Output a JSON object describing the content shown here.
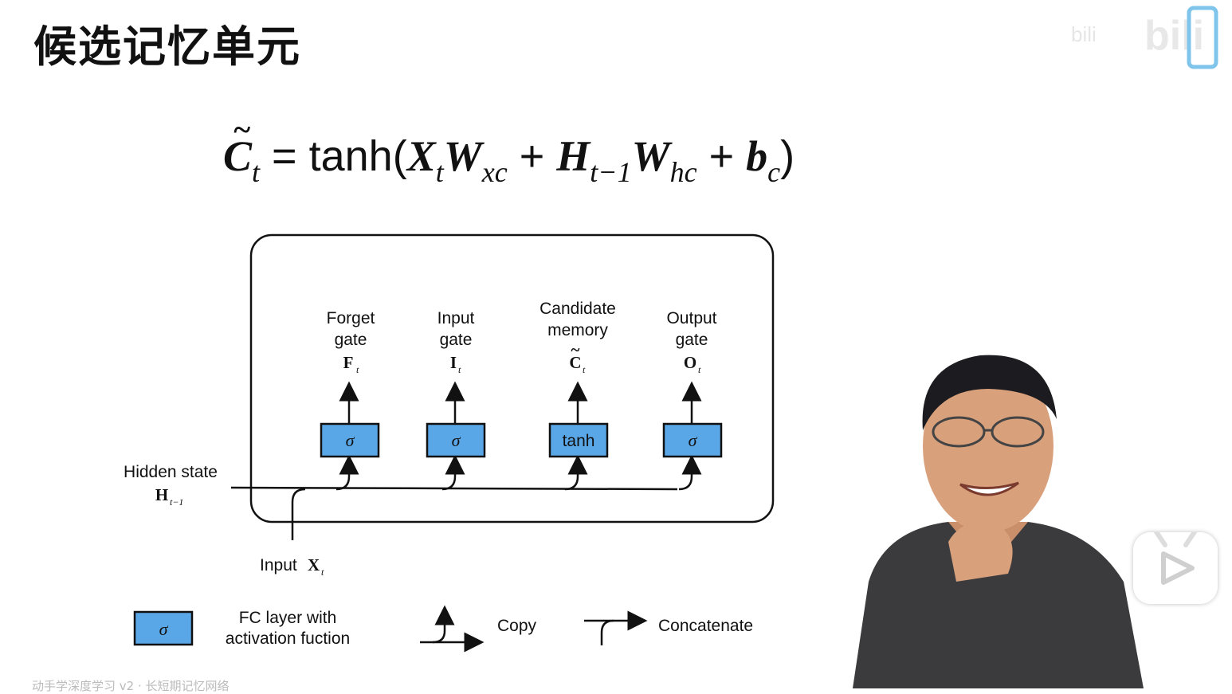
{
  "title": "候选记忆单元",
  "watermark": "bili",
  "formula": {
    "C": "C",
    "t": "t",
    "equals": " = ",
    "tanh": "tanh",
    "open": "(",
    "X": "X",
    "W": "W",
    "xc": "xc",
    "plus": " + ",
    "H": "H",
    "t_minus_1": "t−1",
    "hc": "hc",
    "b": "b",
    "c": "c",
    "close": ")"
  },
  "gates": [
    {
      "name_line1": "Forget",
      "name_line2": "gate",
      "symbol": "F",
      "sub": "t",
      "box": "σ"
    },
    {
      "name_line1": "Input",
      "name_line2": "gate",
      "symbol": "I",
      "sub": "t",
      "box": "σ"
    },
    {
      "name_line1": "Candidate",
      "name_line2": "memory",
      "symbol": "C",
      "sub": "t",
      "box": "tanh"
    },
    {
      "name_line1": "Output",
      "name_line2": "gate",
      "symbol": "O",
      "sub": "t",
      "box": "σ"
    }
  ],
  "hidden_state": {
    "label": "Hidden state",
    "symbol": "H",
    "sub": "t−1"
  },
  "input": {
    "label": "Input",
    "symbol": "X",
    "sub": "t"
  },
  "legend": {
    "box": "σ",
    "fc_line1": "FC layer with",
    "fc_line2": "activation fuction",
    "copy": "Copy",
    "concatenate": "Concatenate"
  },
  "caption": "动手学深度学习 v2 · 长短期记忆网络",
  "colors": {
    "box_fill": "#5aa7e8",
    "box_stroke": "#111111",
    "shirt": "#3b3b3d",
    "skin": "#d9a07c"
  }
}
